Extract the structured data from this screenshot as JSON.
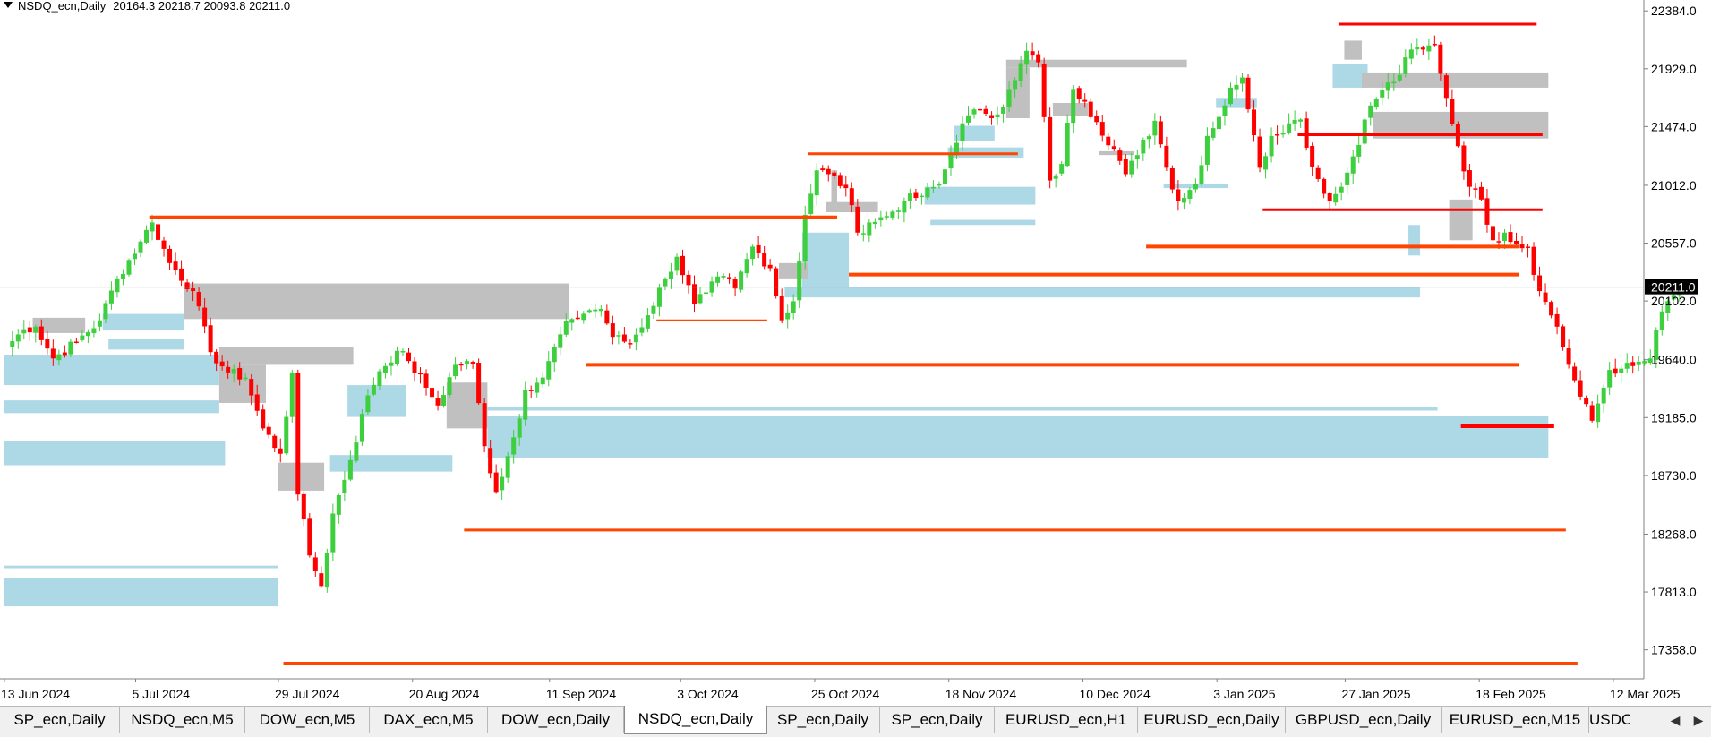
{
  "header": {
    "symbol": "NSDQ_ecn,Daily",
    "ohlc": "20164.3 20218.7 20093.8 20211.0"
  },
  "colors": {
    "bull": "#3ecf3e",
    "bear": "#ff0000",
    "supply_zone": "#c0c0c0",
    "demand_zone": "#add8e6",
    "level": "#ff4500",
    "level_red": "#ff0000",
    "price_line": "#a0a8a8"
  },
  "chart_data": {
    "type": "candlestick",
    "ylim": [
      17130,
      22470
    ],
    "y_ticks": [
      "22384.0",
      "21929.0",
      "21474.0",
      "21012.0",
      "20557.0",
      "20102.0",
      "19640.0",
      "19185.0",
      "18730.0",
      "18268.0",
      "17813.0",
      "17358.0"
    ],
    "x_tick_labels": [
      "13 Jun 2024",
      "5 Jul 2024",
      "29 Jul 2024",
      "20 Aug 2024",
      "11 Sep 2024",
      "3 Oct 2024",
      "25 Oct 2024",
      "18 Nov 2024",
      "10 Dec 2024",
      "3 Jan 2025",
      "27 Jan 2025",
      "18 Feb 2025",
      "12 Mar 2025"
    ],
    "current_price": "20211.0",
    "waypoints": [
      [
        0,
        19740
      ],
      [
        3,
        19880
      ],
      [
        5,
        19900
      ],
      [
        8,
        19650
      ],
      [
        12,
        19780
      ],
      [
        16,
        19950
      ],
      [
        19,
        20280
      ],
      [
        23,
        20570
      ],
      [
        25,
        20720
      ],
      [
        28,
        20400
      ],
      [
        32,
        20180
      ],
      [
        35,
        19700
      ],
      [
        38,
        19540
      ],
      [
        41,
        19500
      ],
      [
        44,
        19100
      ],
      [
        47,
        18900
      ],
      [
        49,
        19540
      ],
      [
        50,
        18580
      ],
      [
        52,
        18100
      ],
      [
        54,
        17860
      ],
      [
        56,
        18430
      ],
      [
        59,
        18850
      ],
      [
        62,
        19360
      ],
      [
        64,
        19550
      ],
      [
        67,
        19710
      ],
      [
        69,
        19630
      ],
      [
        72,
        19420
      ],
      [
        74,
        19280
      ],
      [
        77,
        19600
      ],
      [
        80,
        19610
      ],
      [
        82,
        18960
      ],
      [
        84,
        18600
      ],
      [
        87,
        19030
      ],
      [
        89,
        19400
      ],
      [
        92,
        19500
      ],
      [
        95,
        19840
      ],
      [
        97,
        19960
      ],
      [
        100,
        20030
      ],
      [
        102,
        20040
      ],
      [
        104,
        19820
      ],
      [
        107,
        19770
      ],
      [
        110,
        19990
      ],
      [
        113,
        20280
      ],
      [
        115,
        20450
      ],
      [
        118,
        20080
      ],
      [
        120,
        20170
      ],
      [
        123,
        20300
      ],
      [
        125,
        20200
      ],
      [
        128,
        20530
      ],
      [
        131,
        20360
      ],
      [
        133,
        19950
      ],
      [
        135,
        20100
      ],
      [
        137,
        20780
      ],
      [
        139,
        21130
      ],
      [
        141,
        21100
      ],
      [
        144,
        20990
      ],
      [
        146,
        20640
      ],
      [
        148,
        20720
      ],
      [
        151,
        20770
      ],
      [
        154,
        20890
      ],
      [
        157,
        20930
      ],
      [
        160,
        21020
      ],
      [
        162,
        21260
      ],
      [
        164,
        21500
      ],
      [
        167,
        21610
      ],
      [
        170,
        21570
      ],
      [
        173,
        21840
      ],
      [
        175,
        22070
      ],
      [
        177,
        21980
      ],
      [
        179,
        21050
      ],
      [
        181,
        21180
      ],
      [
        183,
        21770
      ],
      [
        185,
        21670
      ],
      [
        187,
        21510
      ],
      [
        190,
        21300
      ],
      [
        192,
        21100
      ],
      [
        194,
        21250
      ],
      [
        197,
        21520
      ],
      [
        199,
        21150
      ],
      [
        201,
        20890
      ],
      [
        204,
        21020
      ],
      [
        206,
        21400
      ],
      [
        208,
        21550
      ],
      [
        210,
        21780
      ],
      [
        212,
        21860
      ],
      [
        213,
        21610
      ],
      [
        215,
        21150
      ],
      [
        217,
        21400
      ],
      [
        220,
        21500
      ],
      [
        222,
        21530
      ],
      [
        224,
        21160
      ],
      [
        227,
        20890
      ],
      [
        229,
        21000
      ],
      [
        231,
        21240
      ],
      [
        234,
        21640
      ],
      [
        236,
        21760
      ],
      [
        239,
        21880
      ],
      [
        241,
        22080
      ],
      [
        243,
        22080
      ],
      [
        245,
        22120
      ],
      [
        247,
        21700
      ],
      [
        249,
        21320
      ],
      [
        251,
        21000
      ],
      [
        253,
        20900
      ],
      [
        255,
        20580
      ],
      [
        257,
        20640
      ],
      [
        259,
        20550
      ],
      [
        261,
        20520
      ],
      [
        263,
        20180
      ],
      [
        266,
        19900
      ],
      [
        268,
        19600
      ],
      [
        270,
        19350
      ],
      [
        272,
        19160
      ],
      [
        275,
        19560
      ],
      [
        277,
        19570
      ],
      [
        279,
        19590
      ],
      [
        282,
        19650
      ],
      [
        284,
        20020
      ],
      [
        286,
        20150
      ],
      [
        287,
        20211
      ]
    ],
    "supply_zones": [
      {
        "x": [
          5,
          14
        ],
        "y": [
          19850,
          19970
        ]
      },
      {
        "x": [
          31,
          97
        ],
        "y": [
          19960,
          20240
        ]
      },
      {
        "x": [
          37,
          60
        ],
        "y": [
          19600,
          19740
        ]
      },
      {
        "x": [
          37,
          45
        ],
        "y": [
          19300,
          19600
        ]
      },
      {
        "x": [
          47,
          55
        ],
        "y": [
          18610,
          18830
        ]
      },
      {
        "x": [
          76,
          83
        ],
        "y": [
          19100,
          19460
        ]
      },
      {
        "x": [
          133,
          138
        ],
        "y": [
          20280,
          20400
        ]
      },
      {
        "x": [
          141,
          150
        ],
        "y": [
          20800,
          20880
        ]
      },
      {
        "x": [
          142,
          143
        ],
        "y": [
          20800,
          21130
        ]
      },
      {
        "x": [
          172,
          203
        ],
        "y": [
          21940,
          22000
        ]
      },
      {
        "x": [
          172,
          176
        ],
        "y": [
          21540,
          21940
        ]
      },
      {
        "x": [
          180,
          186
        ],
        "y": [
          21560,
          21660
        ]
      },
      {
        "x": [
          188,
          194
        ],
        "y": [
          21250,
          21280
        ]
      },
      {
        "x": [
          230,
          233
        ],
        "y": [
          22000,
          22150
        ]
      },
      {
        "x": [
          233,
          265
        ],
        "y": [
          21780,
          21900
        ]
      },
      {
        "x": [
          235,
          265
        ],
        "y": [
          21380,
          21590
        ]
      },
      {
        "x": [
          248,
          252
        ],
        "y": [
          20580,
          20900
        ]
      }
    ],
    "demand_zones": [
      {
        "x": [
          0,
          37
        ],
        "y": [
          19440,
          19680
        ]
      },
      {
        "x": [
          0,
          37
        ],
        "y": [
          19220,
          19320
        ]
      },
      {
        "x": [
          0,
          38
        ],
        "y": [
          18810,
          19000
        ]
      },
      {
        "x": [
          17,
          31
        ],
        "y": [
          19870,
          20000
        ]
      },
      {
        "x": [
          18,
          31
        ],
        "y": [
          19720,
          19800
        ]
      },
      {
        "x": [
          0,
          47
        ],
        "y": [
          18000,
          18020
        ]
      },
      {
        "x": [
          0,
          47
        ],
        "y": [
          17700,
          17920
        ]
      },
      {
        "x": [
          56,
          77
        ],
        "y": [
          18760,
          18890
        ]
      },
      {
        "x": [
          59,
          69
        ],
        "y": [
          19190,
          19440
        ]
      },
      {
        "x": [
          83,
          265
        ],
        "y": [
          18870,
          19200
        ]
      },
      {
        "x": [
          83,
          246
        ],
        "y": [
          19240,
          19270
        ]
      },
      {
        "x": [
          134,
          243
        ],
        "y": [
          20130,
          20210
        ]
      },
      {
        "x": [
          137,
          145
        ],
        "y": [
          20200,
          20640
        ]
      },
      {
        "x": [
          158,
          177
        ],
        "y": [
          20860,
          21000
        ]
      },
      {
        "x": [
          159,
          177
        ],
        "y": [
          20700,
          20740
        ]
      },
      {
        "x": [
          162,
          175
        ],
        "y": [
          21230,
          21310
        ]
      },
      {
        "x": [
          163,
          170
        ],
        "y": [
          21360,
          21480
        ]
      },
      {
        "x": [
          199,
          210
        ],
        "y": [
          20990,
          21020
        ]
      },
      {
        "x": [
          208,
          215
        ],
        "y": [
          21620,
          21700
        ]
      },
      {
        "x": [
          228,
          234
        ],
        "y": [
          21780,
          21970
        ]
      },
      {
        "x": [
          241,
          243
        ],
        "y": [
          20460,
          20700
        ]
      }
    ],
    "levels": [
      {
        "x": [
          25,
          143
        ],
        "price": 20760,
        "color": "level",
        "w": 4
      },
      {
        "x": [
          138,
          174
        ],
        "price": 21260,
        "color": "level",
        "w": 3
      },
      {
        "x": [
          145,
          260
        ],
        "price": 20310,
        "color": "level",
        "w": 4
      },
      {
        "x": [
          196,
          260
        ],
        "price": 20530,
        "color": "level",
        "w": 4
      },
      {
        "x": [
          216,
          264
        ],
        "price": 20820,
        "color": "level_red",
        "w": 3
      },
      {
        "x": [
          222,
          264
        ],
        "price": 21410,
        "color": "level_red",
        "w": 3
      },
      {
        "x": [
          229,
          263
        ],
        "price": 22280,
        "color": "level_red",
        "w": 3
      },
      {
        "x": [
          100,
          260
        ],
        "price": 19600,
        "color": "level",
        "w": 4
      },
      {
        "x": [
          112,
          131
        ],
        "price": 19950,
        "color": "level",
        "w": 2
      },
      {
        "x": [
          79,
          268
        ],
        "price": 18300,
        "color": "level",
        "w": 3
      },
      {
        "x": [
          48,
          270
        ],
        "price": 17250,
        "color": "level",
        "w": 4
      },
      {
        "x": [
          250,
          266
        ],
        "price": 19120,
        "color": "level_red",
        "w": 5
      }
    ]
  },
  "tabs": [
    {
      "label": "SP_ecn,Daily"
    },
    {
      "label": "NSDQ_ecn,M5"
    },
    {
      "label": "DOW_ecn,M5"
    },
    {
      "label": "DAX_ecn,M5"
    },
    {
      "label": "DOW_ecn,Daily"
    },
    {
      "label": "NSDQ_ecn,Daily",
      "active": true
    },
    {
      "label": "SP_ecn,Daily"
    },
    {
      "label": "SP_ecn,Daily"
    },
    {
      "label": "EURUSD_ecn,H1"
    },
    {
      "label": "EURUSD_ecn,Daily"
    },
    {
      "label": "GBPUSD_ecn,Daily"
    },
    {
      "label": "EURUSD_ecn,M15"
    },
    {
      "label": "USDC"
    }
  ],
  "tab_nav": {
    "prev_icon": "chevron-left-icon",
    "next_icon": "chevron-right-icon"
  }
}
